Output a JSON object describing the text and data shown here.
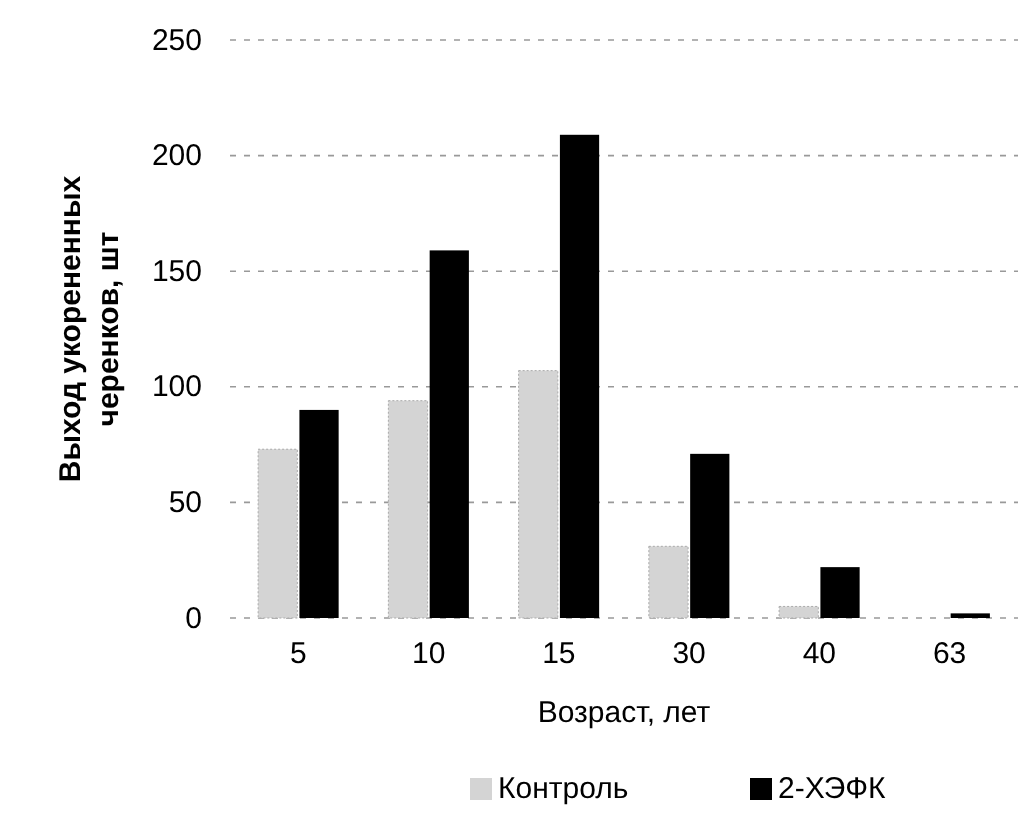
{
  "chart_data": {
    "type": "bar",
    "xlabel": "Возраст, лет",
    "ylabel": "Выход укорененных черенков, шт",
    "categories": [
      "5",
      "10",
      "15",
      "30",
      "40",
      "63"
    ],
    "series": [
      {
        "name": "Контроль",
        "color": "#d4d4d4",
        "values": [
          73,
          94,
          107,
          31,
          5,
          0
        ]
      },
      {
        "name": "2-ХЭФК",
        "color": "#000000",
        "values": [
          90,
          159,
          209,
          71,
          22,
          2
        ]
      }
    ],
    "ylim": [
      0,
      250
    ],
    "yticks": [
      0,
      50,
      100,
      150,
      200,
      250
    ],
    "grid": "y",
    "legend": "bottom"
  }
}
